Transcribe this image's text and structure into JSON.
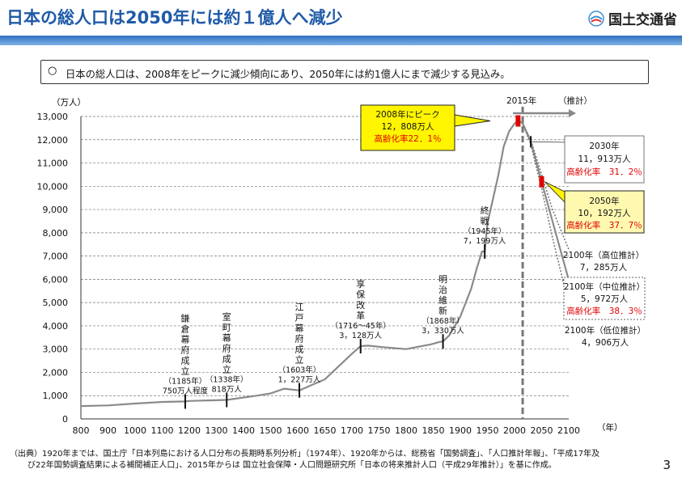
{
  "header": {
    "title": "日本の総人口は2050年には約１億人へ減少",
    "ministry": "国土交通省"
  },
  "summary": {
    "bullet": "○",
    "text": "日本の総人口は、2008年をピークに減少傾向にあり、2050年には約1億人にまで減少する見込み。"
  },
  "chart_data": {
    "type": "line",
    "ylabel": "（万人）",
    "xlabel": "（年）",
    "xlim": [
      800,
      2100
    ],
    "ylim": [
      0,
      13000
    ],
    "xticks": [
      800,
      900,
      1000,
      1100,
      1200,
      1300,
      1400,
      1500,
      1600,
      1650,
      1700,
      1750,
      1800,
      1850,
      1900,
      1950,
      2000,
      2050,
      2100
    ],
    "yticks": [
      0,
      1000,
      2000,
      3000,
      4000,
      5000,
      6000,
      7000,
      8000,
      9000,
      10000,
      11000,
      12000,
      13000
    ],
    "grid": "horizontal dashed",
    "series": [
      {
        "x": [
          800,
          900,
          1000,
          1100,
          1185,
          1200,
          1338,
          1450,
          1500,
          1550,
          1603,
          1650,
          1700,
          1716,
          1730,
          1750,
          1800,
          1845,
          1850,
          1860,
          1868,
          1880,
          1900,
          1920,
          1930,
          1940,
          1945,
          1950,
          1960,
          1970,
          1980,
          1990,
          2000,
          2008,
          2015
        ],
        "y": [
          551,
          580,
          660,
          730,
          750,
          770,
          818,
          1000,
          1100,
          1300,
          1227,
          1700,
          2800,
          3128,
          3150,
          3100,
          3000,
          3200,
          3230,
          3300,
          3330,
          3600,
          4400,
          5596,
          6445,
          7193,
          7199,
          8411,
          9430,
          10467,
          11706,
          12361,
          12693,
          12808,
          12709
        ]
      },
      {
        "name": "2100年（高位推計）",
        "x": [
          2015,
          2030,
          2050,
          2070,
          2100
        ],
        "y": [
          12709,
          12000,
          10500,
          9000,
          7285
        ]
      },
      {
        "name": "2100年（中位推計）",
        "x": [
          2015,
          2030,
          2050,
          2070,
          2100
        ],
        "y": [
          12709,
          11913,
          10192,
          8500,
          5972
        ]
      },
      {
        "name": "2100年（低位推計）",
        "x": [
          2015,
          2030,
          2050,
          2070,
          2100
        ],
        "y": [
          12709,
          11800,
          9900,
          7800,
          4906
        ]
      }
    ],
    "events": [
      {
        "x": 1185,
        "y": 750,
        "lines": [
          "鎌",
          "倉",
          "幕",
          "府",
          "成",
          "立"
        ],
        "year": "（1185年）",
        "pop": "750万人程度"
      },
      {
        "x": 1338,
        "y": 818,
        "lines": [
          "室",
          "町",
          "幕",
          "府",
          "成",
          "立"
        ],
        "year": "（1338年）",
        "pop": "818万人"
      },
      {
        "x": 1603,
        "y": 1227,
        "lines": [
          "江",
          "戸",
          "幕",
          "府",
          "成",
          "立"
        ],
        "year": "（1603年）",
        "pop": "1，227万人"
      },
      {
        "x": 1716,
        "y": 3128,
        "lines": [
          "享",
          "保",
          "改",
          "革"
        ],
        "year": "（1716～45年）",
        "pop": "3，128万人"
      },
      {
        "x": 1868,
        "y": 3330,
        "lines": [
          "明",
          "治",
          "維",
          "新"
        ],
        "year": "（1868年）",
        "pop": "3，330万人"
      },
      {
        "x": 1945,
        "y": 7199,
        "lines": [
          "終",
          "戦"
        ],
        "year": "（1945年）",
        "pop": "7，199万人"
      }
    ],
    "annotations": {
      "year2015": "2015年",
      "estimate": "（推計）",
      "peak": {
        "l1": "2008年にピーク",
        "l2": "12，808万人",
        "l3": "高齢化率22．1％"
      },
      "y2030": {
        "l1": "2030年",
        "l2": "11，913万人",
        "l3": "高齢化率　31．2％"
      },
      "y2050": {
        "l1": "2050年",
        "l2": "10，192万人",
        "l3": "高齢化率　37．7％"
      },
      "high": {
        "l1": "2100年（高位推計）",
        "l2": "7，285万人"
      },
      "mid": {
        "l1": "2100年（中位推計）",
        "l2": "5，972万人",
        "l3": "高齢化率　38．3％"
      },
      "low": {
        "l1": "2100年（低位推計）",
        "l2": "4，906万人"
      }
    }
  },
  "colors": {
    "title": "#1f5aa8",
    "accent_red": "#e00000",
    "peak_box": "#fff500",
    "line": "#8a8a8a"
  },
  "source": {
    "l1": "（出典）1920年までは、国土庁「日本列島における人口分布の長期時系列分析」（1974年）、1920年からは、総務省「国勢調査」、「人口推計年報」、「平成17年及",
    "l2": "び22年国勢調査結果による補間補正人口」、2015年からは 国立社会保障・人口問題研究所「日本の将来推計人口（平成29年推計）」を基に作成。"
  },
  "page_number": "3"
}
